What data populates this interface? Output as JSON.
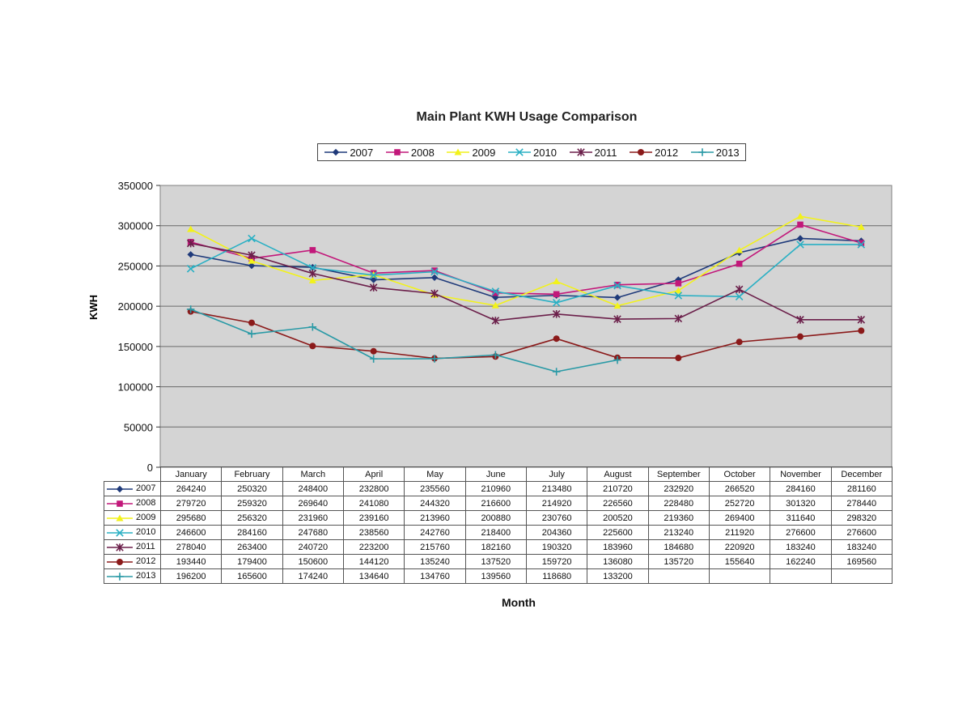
{
  "chart_data": {
    "type": "line",
    "title": "Main Plant KWH Usage Comparison",
    "xlabel": "Month",
    "ylabel": "KWH",
    "ylim": [
      0,
      350000
    ],
    "yticks": [
      0,
      50000,
      100000,
      150000,
      200000,
      250000,
      300000,
      350000
    ],
    "grid": true,
    "legend_position": "top",
    "categories": [
      "January",
      "February",
      "March",
      "April",
      "May",
      "June",
      "July",
      "August",
      "September",
      "October",
      "November",
      "December"
    ],
    "series": [
      {
        "name": "2007",
        "color": "#1f3a7a",
        "marker": "diamond",
        "values": [
          264240,
          250320,
          248400,
          232800,
          235560,
          210960,
          213480,
          210720,
          232920,
          266520,
          284160,
          281160
        ]
      },
      {
        "name": "2008",
        "color": "#c2187a",
        "marker": "square",
        "values": [
          279720,
          259320,
          269640,
          241080,
          244320,
          216600,
          214920,
          226560,
          228480,
          252720,
          301320,
          278440
        ]
      },
      {
        "name": "2009",
        "color": "#f2f21a",
        "marker": "triangle",
        "values": [
          295680,
          256320,
          231960,
          239160,
          213960,
          200880,
          230760,
          200520,
          219360,
          269400,
          311640,
          298320
        ]
      },
      {
        "name": "2010",
        "color": "#2ab0c4",
        "marker": "x",
        "values": [
          246600,
          284160,
          247680,
          238560,
          242760,
          218400,
          204360,
          225600,
          213240,
          211920,
          276600,
          276600
        ]
      },
      {
        "name": "2011",
        "color": "#6b1f4a",
        "marker": "asterisk",
        "values": [
          278040,
          263400,
          240720,
          223200,
          215760,
          182160,
          190320,
          183960,
          184680,
          220920,
          183240,
          183240
        ]
      },
      {
        "name": "2012",
        "color": "#8b1a1a",
        "marker": "circle",
        "values": [
          193440,
          179400,
          150600,
          144120,
          135240,
          137520,
          159720,
          136080,
          135720,
          155640,
          162240,
          169560
        ]
      },
      {
        "name": "2013",
        "color": "#2a9aa6",
        "marker": "plus",
        "values": [
          196200,
          165600,
          174240,
          134640,
          134760,
          139560,
          118680,
          133200,
          null,
          null,
          null,
          null
        ]
      }
    ]
  }
}
